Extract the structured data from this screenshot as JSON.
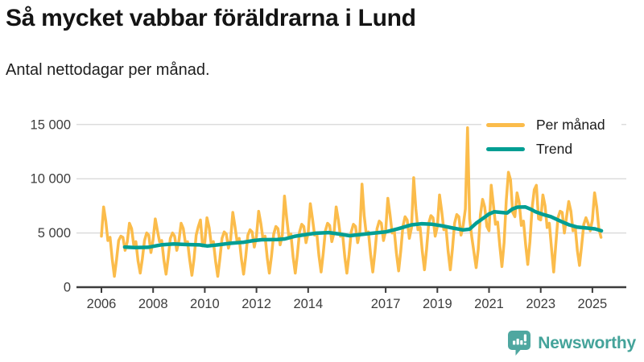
{
  "header": {
    "title": "Så mycket vabbar föräldrarna i Lund",
    "subtitle": "Antal nettodagar per månad."
  },
  "footer": {
    "brand": "Newsworthy",
    "brand_color": "#44A39A",
    "logo_icon": "bar-chart-speech-bubble-icon",
    "logo_color": "#4FA7A0"
  },
  "chart_data": {
    "type": "line",
    "title": "Så mycket vabbar föräldrarna i Lund",
    "subtitle": "Antal nettodagar per månad.",
    "ylabel": "",
    "xlabel": "",
    "grid": true,
    "legend_position": "top-right",
    "x_range": [
      2005.0,
      2026.3
    ],
    "y_range": [
      0,
      15500
    ],
    "yticks": [
      {
        "value": 0,
        "label": "0"
      },
      {
        "value": 5000,
        "label": "5 000"
      },
      {
        "value": 10000,
        "label": "10 000"
      },
      {
        "value": 15000,
        "label": "15 000"
      }
    ],
    "grid_values": [
      5000,
      10000,
      15000
    ],
    "xticks": [
      {
        "year": 2006,
        "label": "2006"
      },
      {
        "year": 2008,
        "label": "2008"
      },
      {
        "year": 2010,
        "label": "2010"
      },
      {
        "year": 2012,
        "label": "2012"
      },
      {
        "year": 2014,
        "label": "2014"
      },
      {
        "year": 2017,
        "label": "2017"
      },
      {
        "year": 2019,
        "label": "2019"
      },
      {
        "year": 2021,
        "label": "2021"
      },
      {
        "year": 2023,
        "label": "2023"
      },
      {
        "year": 2025,
        "label": "2025"
      }
    ],
    "colors": {
      "grid": "#dcdcdc",
      "axis": "#3c3c3c"
    },
    "series": [
      {
        "name": "Per månad",
        "color": "#FBBC4B",
        "frequency": "monthly",
        "start_year": 2006,
        "start_month": 1,
        "values": [
          4700,
          7400,
          6100,
          4300,
          4600,
          2600,
          1000,
          2500,
          4300,
          4700,
          4600,
          3400,
          4200,
          5900,
          5400,
          3900,
          4200,
          2400,
          1300,
          2600,
          4300,
          5000,
          4800,
          3200,
          4400,
          6300,
          5200,
          4200,
          4300,
          2500,
          1200,
          2700,
          4500,
          5000,
          4700,
          3400,
          4300,
          5900,
          5400,
          4100,
          4200,
          2500,
          1100,
          2600,
          4800,
          5600,
          6200,
          3800,
          4100,
          6400,
          5500,
          4000,
          4200,
          2400,
          1000,
          2600,
          4500,
          5100,
          4900,
          3600,
          4400,
          6900,
          5600,
          4200,
          4500,
          2600,
          1200,
          2800,
          4800,
          5300,
          5100,
          3700,
          4700,
          7000,
          5900,
          4500,
          4700,
          2700,
          1300,
          2900,
          4900,
          5600,
          5400,
          3900,
          4800,
          8400,
          6400,
          4700,
          4900,
          2800,
          1300,
          3000,
          5100,
          5800,
          5600,
          4100,
          5000,
          7700,
          6300,
          4800,
          5000,
          2900,
          1400,
          3100,
          5200,
          5900,
          5700,
          4200,
          5000,
          7400,
          6200,
          4700,
          4900,
          2800,
          1300,
          3000,
          5100,
          5800,
          5600,
          4100,
          5100,
          9500,
          6600,
          4900,
          5100,
          3000,
          1400,
          3200,
          5400,
          6100,
          5900,
          4300,
          5200,
          8200,
          6700,
          5000,
          5200,
          3100,
          1500,
          3300,
          5600,
          6500,
          6200,
          4500,
          5500,
          10100,
          7200,
          5300,
          5500,
          3300,
          1600,
          3500,
          5900,
          6600,
          6400,
          4700,
          5600,
          8500,
          7000,
          5300,
          5500,
          3300,
          1600,
          3500,
          5900,
          6700,
          6500,
          4800,
          5700,
          7200,
          14700,
          6300,
          4600,
          3200,
          1800,
          3500,
          6700,
          8100,
          7400,
          5600,
          5200,
          9400,
          7600,
          5800,
          6000,
          3800,
          1900,
          4100,
          8000,
          10600,
          9900,
          6900,
          6500,
          8700,
          7800,
          5700,
          6100,
          3900,
          2100,
          4200,
          7300,
          9000,
          9400,
          6300,
          6200,
          8500,
          7500,
          5500,
          5900,
          3600,
          1400,
          3900,
          6400,
          7000,
          6900,
          5000,
          6500,
          7900,
          7000,
          5200,
          5600,
          3400,
          2000,
          3800,
          5800,
          6400,
          5900,
          5200,
          6200,
          8700,
          7400,
          5400,
          4600
        ]
      },
      {
        "name": "Trend",
        "color": "#009E93",
        "points": [
          [
            2006.9,
            3700
          ],
          [
            2007.3,
            3650
          ],
          [
            2007.8,
            3680
          ],
          [
            2008.3,
            3900
          ],
          [
            2008.8,
            3980
          ],
          [
            2009.3,
            3930
          ],
          [
            2009.8,
            3900
          ],
          [
            2010.1,
            3800
          ],
          [
            2010.5,
            3900
          ],
          [
            2011.0,
            4050
          ],
          [
            2011.5,
            4150
          ],
          [
            2011.9,
            4300
          ],
          [
            2012.2,
            4380
          ],
          [
            2012.8,
            4400
          ],
          [
            2013.1,
            4450
          ],
          [
            2013.5,
            4700
          ],
          [
            2013.9,
            4850
          ],
          [
            2014.3,
            4980
          ],
          [
            2014.8,
            5040
          ],
          [
            2015.2,
            4900
          ],
          [
            2015.6,
            4750
          ],
          [
            2016.0,
            4850
          ],
          [
            2016.5,
            4980
          ],
          [
            2017.0,
            5100
          ],
          [
            2017.5,
            5400
          ],
          [
            2018.0,
            5750
          ],
          [
            2018.4,
            5850
          ],
          [
            2018.8,
            5800
          ],
          [
            2019.2,
            5650
          ],
          [
            2019.6,
            5450
          ],
          [
            2020.0,
            5280
          ],
          [
            2020.25,
            5350
          ],
          [
            2020.5,
            5900
          ],
          [
            2020.8,
            6400
          ],
          [
            2021.0,
            6750
          ],
          [
            2021.2,
            6950
          ],
          [
            2021.45,
            6900
          ],
          [
            2021.7,
            6850
          ],
          [
            2021.9,
            7200
          ],
          [
            2022.1,
            7380
          ],
          [
            2022.4,
            7400
          ],
          [
            2022.6,
            7200
          ],
          [
            2022.8,
            6950
          ],
          [
            2023.1,
            6700
          ],
          [
            2023.4,
            6500
          ],
          [
            2023.8,
            6050
          ],
          [
            2024.1,
            5750
          ],
          [
            2024.4,
            5550
          ],
          [
            2024.8,
            5450
          ],
          [
            2025.1,
            5380
          ],
          [
            2025.35,
            5200
          ]
        ]
      }
    ]
  }
}
